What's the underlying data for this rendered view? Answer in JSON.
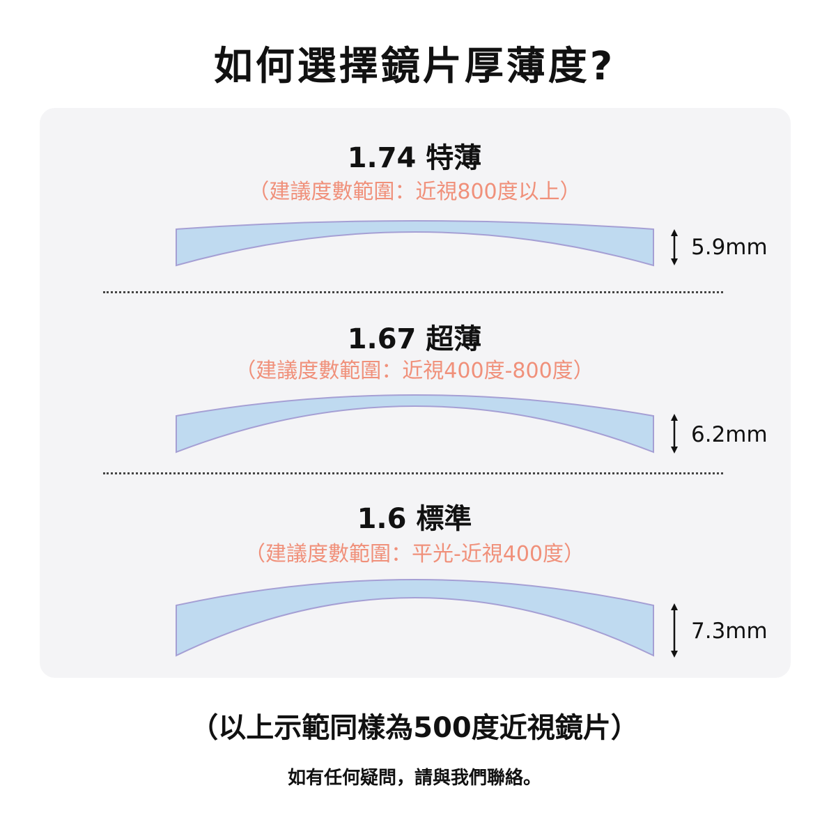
{
  "title": "如何選擇鏡片厚薄度?",
  "colors": {
    "card_bg": "#f4f4f6",
    "lens_fill": "#bfdaf0",
    "lens_stroke": "#a59fd4",
    "recommendation": "#f0907a"
  },
  "lenses": [
    {
      "heading": "1.74 特薄",
      "recommendation": "（建議度數範圍：近視800度以上）",
      "thickness": "5.9mm",
      "icon": "double-arrow-vertical-icon"
    },
    {
      "heading": "1.67 超薄",
      "recommendation": "（建議度數範圍：近視400度-800度）",
      "thickness": "6.2mm",
      "icon": "double-arrow-vertical-icon"
    },
    {
      "heading": "1.6 標準",
      "recommendation": "（建議度數範圍：平光-近視400度）",
      "thickness": "7.3mm",
      "icon": "double-arrow-vertical-icon"
    }
  ],
  "note": "（以上示範同樣為500度近視鏡片）",
  "contact": "如有任何疑問，請與我們聯絡。"
}
